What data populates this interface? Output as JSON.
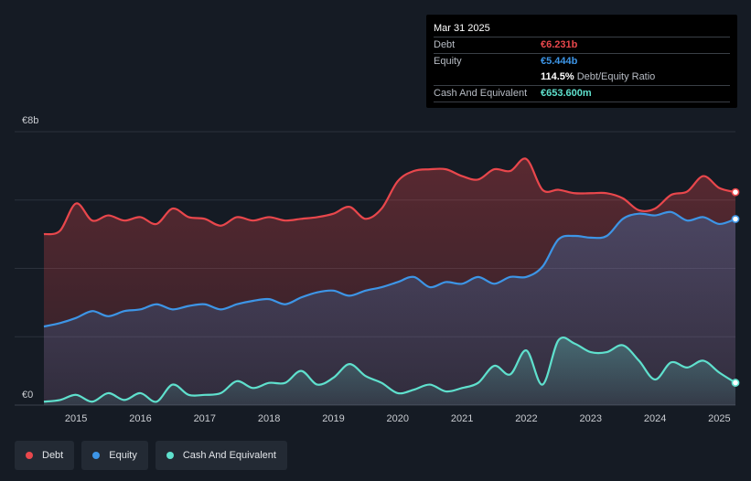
{
  "tooltip": {
    "date": "Mar 31 2025",
    "rows": [
      {
        "label": "Debt",
        "value": "€6.231b",
        "color": "#e9474c"
      },
      {
        "label": "Equity",
        "value": "€5.444b",
        "color": "#3d95e6"
      },
      {
        "label": "",
        "value": "114.5%",
        "sub": "Debt/Equity Ratio",
        "color": "#ffffff"
      },
      {
        "label": "Cash And Equivalent",
        "value": "€653.600m",
        "color": "#5fe0cd"
      }
    ]
  },
  "legend": [
    {
      "label": "Debt",
      "color": "#e9474c"
    },
    {
      "label": "Equity",
      "color": "#3d95e6"
    },
    {
      "label": "Cash And Equivalent",
      "color": "#5fe0cd"
    }
  ],
  "chart_data": {
    "type": "area",
    "y_top_label": "€8b",
    "y_bottom_label": "€0",
    "ylim": [
      0,
      8
    ],
    "y_unit": "€b",
    "xlim": [
      2014.5,
      2025.25
    ],
    "x_ticks": [
      "2015",
      "2016",
      "2017",
      "2018",
      "2019",
      "2020",
      "2021",
      "2022",
      "2023",
      "2024",
      "2025"
    ],
    "grid": true,
    "series": [
      {
        "name": "Debt",
        "color": "#e9474c",
        "points": [
          [
            2014.5,
            5.0
          ],
          [
            2014.75,
            5.1
          ],
          [
            2015.0,
            5.9
          ],
          [
            2015.25,
            5.4
          ],
          [
            2015.5,
            5.55
          ],
          [
            2015.75,
            5.4
          ],
          [
            2016.0,
            5.5
          ],
          [
            2016.25,
            5.3
          ],
          [
            2016.5,
            5.75
          ],
          [
            2016.75,
            5.5
          ],
          [
            2017.0,
            5.45
          ],
          [
            2017.25,
            5.25
          ],
          [
            2017.5,
            5.5
          ],
          [
            2017.75,
            5.4
          ],
          [
            2018.0,
            5.5
          ],
          [
            2018.25,
            5.4
          ],
          [
            2018.5,
            5.45
          ],
          [
            2018.75,
            5.5
          ],
          [
            2019.0,
            5.6
          ],
          [
            2019.25,
            5.8
          ],
          [
            2019.5,
            5.45
          ],
          [
            2019.75,
            5.75
          ],
          [
            2020.0,
            6.55
          ],
          [
            2020.25,
            6.85
          ],
          [
            2020.5,
            6.9
          ],
          [
            2020.75,
            6.9
          ],
          [
            2021.0,
            6.7
          ],
          [
            2021.25,
            6.6
          ],
          [
            2021.5,
            6.9
          ],
          [
            2021.75,
            6.85
          ],
          [
            2022.0,
            7.2
          ],
          [
            2022.25,
            6.3
          ],
          [
            2022.5,
            6.3
          ],
          [
            2022.75,
            6.2
          ],
          [
            2023.0,
            6.2
          ],
          [
            2023.25,
            6.2
          ],
          [
            2023.5,
            6.05
          ],
          [
            2023.75,
            5.7
          ],
          [
            2024.0,
            5.75
          ],
          [
            2024.25,
            6.15
          ],
          [
            2024.5,
            6.25
          ],
          [
            2024.75,
            6.7
          ],
          [
            2025.0,
            6.35
          ],
          [
            2025.25,
            6.231
          ]
        ]
      },
      {
        "name": "Equity",
        "color": "#3d95e6",
        "points": [
          [
            2014.5,
            2.3
          ],
          [
            2014.75,
            2.4
          ],
          [
            2015.0,
            2.55
          ],
          [
            2015.25,
            2.75
          ],
          [
            2015.5,
            2.6
          ],
          [
            2015.75,
            2.75
          ],
          [
            2016.0,
            2.8
          ],
          [
            2016.25,
            2.95
          ],
          [
            2016.5,
            2.8
          ],
          [
            2016.75,
            2.9
          ],
          [
            2017.0,
            2.95
          ],
          [
            2017.25,
            2.8
          ],
          [
            2017.5,
            2.95
          ],
          [
            2017.75,
            3.05
          ],
          [
            2018.0,
            3.1
          ],
          [
            2018.25,
            2.95
          ],
          [
            2018.5,
            3.15
          ],
          [
            2018.75,
            3.3
          ],
          [
            2019.0,
            3.35
          ],
          [
            2019.25,
            3.2
          ],
          [
            2019.5,
            3.35
          ],
          [
            2019.75,
            3.45
          ],
          [
            2020.0,
            3.6
          ],
          [
            2020.25,
            3.75
          ],
          [
            2020.5,
            3.45
          ],
          [
            2020.75,
            3.6
          ],
          [
            2021.0,
            3.55
          ],
          [
            2021.25,
            3.75
          ],
          [
            2021.5,
            3.55
          ],
          [
            2021.75,
            3.75
          ],
          [
            2022.0,
            3.75
          ],
          [
            2022.25,
            4.05
          ],
          [
            2022.5,
            4.85
          ],
          [
            2022.75,
            4.95
          ],
          [
            2023.0,
            4.9
          ],
          [
            2023.25,
            4.95
          ],
          [
            2023.5,
            5.45
          ],
          [
            2023.75,
            5.6
          ],
          [
            2024.0,
            5.55
          ],
          [
            2024.25,
            5.65
          ],
          [
            2024.5,
            5.4
          ],
          [
            2024.75,
            5.5
          ],
          [
            2025.0,
            5.3
          ],
          [
            2025.25,
            5.444
          ]
        ]
      },
      {
        "name": "Cash And Equivalent",
        "color": "#5fe0cd",
        "points": [
          [
            2014.5,
            0.1
          ],
          [
            2014.75,
            0.15
          ],
          [
            2015.0,
            0.3
          ],
          [
            2015.25,
            0.1
          ],
          [
            2015.5,
            0.35
          ],
          [
            2015.75,
            0.15
          ],
          [
            2016.0,
            0.35
          ],
          [
            2016.25,
            0.1
          ],
          [
            2016.5,
            0.6
          ],
          [
            2016.75,
            0.3
          ],
          [
            2017.0,
            0.3
          ],
          [
            2017.25,
            0.35
          ],
          [
            2017.5,
            0.7
          ],
          [
            2017.75,
            0.5
          ],
          [
            2018.0,
            0.65
          ],
          [
            2018.25,
            0.65
          ],
          [
            2018.5,
            1.0
          ],
          [
            2018.75,
            0.6
          ],
          [
            2019.0,
            0.8
          ],
          [
            2019.25,
            1.2
          ],
          [
            2019.5,
            0.85
          ],
          [
            2019.75,
            0.65
          ],
          [
            2020.0,
            0.35
          ],
          [
            2020.25,
            0.45
          ],
          [
            2020.5,
            0.6
          ],
          [
            2020.75,
            0.4
          ],
          [
            2021.0,
            0.5
          ],
          [
            2021.25,
            0.65
          ],
          [
            2021.5,
            1.15
          ],
          [
            2021.75,
            0.9
          ],
          [
            2022.0,
            1.6
          ],
          [
            2022.25,
            0.6
          ],
          [
            2022.5,
            1.9
          ],
          [
            2022.75,
            1.8
          ],
          [
            2023.0,
            1.55
          ],
          [
            2023.25,
            1.55
          ],
          [
            2023.5,
            1.75
          ],
          [
            2023.75,
            1.3
          ],
          [
            2024.0,
            0.75
          ],
          [
            2024.25,
            1.25
          ],
          [
            2024.5,
            1.1
          ],
          [
            2024.75,
            1.3
          ],
          [
            2025.0,
            0.95
          ],
          [
            2025.25,
            0.6536
          ]
        ]
      }
    ]
  }
}
